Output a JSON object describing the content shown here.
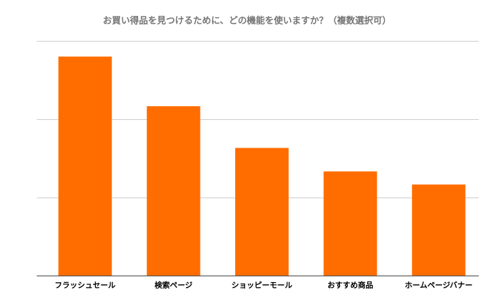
{
  "colors": {
    "bar": "#ff6d01",
    "gridline": "#cccccc",
    "baseline": "#333333",
    "title": "#757575",
    "label": "#000000"
  },
  "chart_data": {
    "type": "bar",
    "title": "お買い得品を見つけるために、どの機能を使いますか？（複数選択可）",
    "xlabel": "",
    "ylabel": "",
    "categories": [
      "フラッシュセール",
      "検索ページ",
      "ショッピーモール",
      "おすすめ商品",
      "ホームページバナー"
    ],
    "values": [
      84,
      65,
      49,
      40,
      35
    ],
    "ylim": [
      0,
      90
    ],
    "gridlines": [
      30,
      60,
      90
    ],
    "grid": true,
    "legend": "none",
    "y_tick_labels_visible": false
  }
}
